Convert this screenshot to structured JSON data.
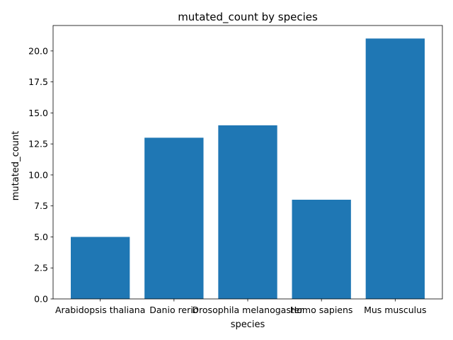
{
  "chart_data": {
    "type": "bar",
    "title": "mutated_count by species",
    "xlabel": "species",
    "ylabel": "mutated_count",
    "categories": [
      "Arabidopsis thaliana",
      "Danio rerio",
      "Drosophila melanogaster",
      "Homo sapiens",
      "Mus musculus"
    ],
    "values": [
      5,
      13,
      14,
      8,
      21
    ],
    "ylim": [
      0,
      22.05
    ],
    "yticks": [
      0.0,
      2.5,
      5.0,
      7.5,
      10.0,
      12.5,
      15.0,
      17.5,
      20.0
    ],
    "ytick_labels": [
      "0.0",
      "2.5",
      "5.0",
      "7.5",
      "10.0",
      "12.5",
      "15.0",
      "17.5",
      "20.0"
    ],
    "bar_color": "#1f77b4",
    "grid": false,
    "legend": "none"
  }
}
